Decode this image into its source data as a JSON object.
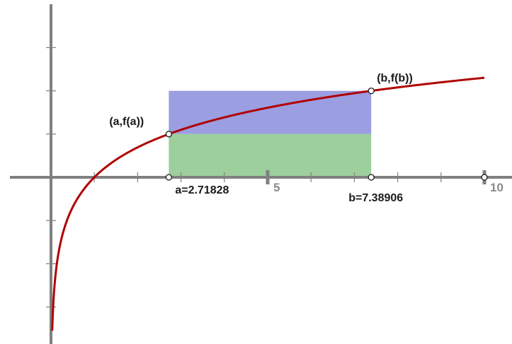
{
  "chart_data": {
    "type": "line",
    "function": "ln(x)",
    "xlim": [
      -0.95,
      10.4
    ],
    "ylim": [
      -3.55,
      4.0
    ],
    "grid": false,
    "x_ticks": [
      1,
      2,
      3,
      4,
      5,
      6,
      7,
      8,
      9,
      10
    ],
    "y_ticks": [
      -3,
      -2,
      -1,
      1,
      2,
      3
    ],
    "tick_labels": [
      {
        "x": 5,
        "text": "5"
      },
      {
        "x": 10,
        "text": "10"
      }
    ],
    "a": 2.71828,
    "b": 7.38906,
    "f_a": 1,
    "f_b": 2,
    "a_label": "a=2.71828",
    "b_label": "b=7.38906",
    "point_a_label": "(a,f(a))",
    "point_b_label": "(b,f(b))",
    "curve_color": "#b00000",
    "upper_rect_color": "#9b9ee0",
    "lower_rect_color": "#9ccf9c"
  }
}
